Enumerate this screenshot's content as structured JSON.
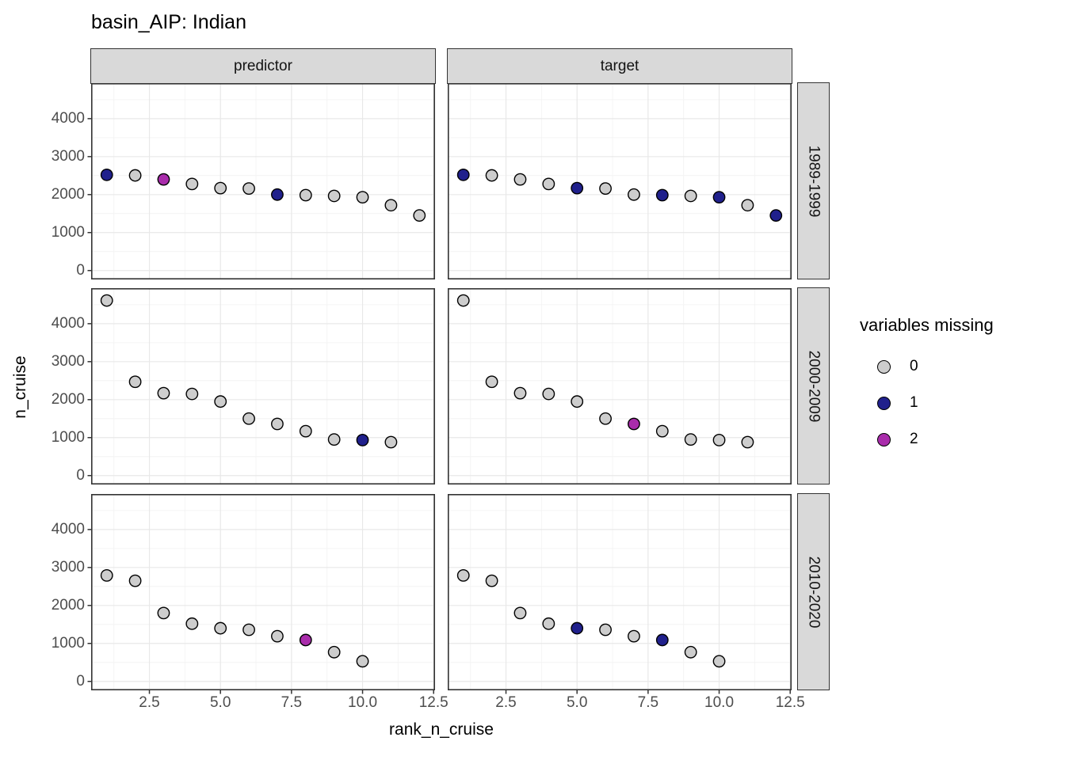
{
  "title": "basin_AIP: Indian",
  "colors": {
    "strip_fill": "#d9d9d9",
    "panel_border": "#333333",
    "grid_major": "#e8e8e8",
    "grid_minor": "#f4f4f4",
    "tick_text": "#4d4d4d",
    "point_stroke": "#000000"
  },
  "chart_data": {
    "type": "scatter",
    "title": "basin_AIP: Indian",
    "xlabel": "rank_n_cruise",
    "ylabel": "n_cruise",
    "facet_cols": [
      "predictor",
      "target"
    ],
    "facet_rows": [
      "1989-1999",
      "2000-2009",
      "2010-2020"
    ],
    "x_ticks": [
      2.5,
      5.0,
      7.5,
      10.0,
      12.5
    ],
    "x_tick_labels": [
      "2.5",
      "5.0",
      "7.5",
      "10.0",
      "12.5"
    ],
    "y_ticks": [
      0,
      1000,
      2000,
      3000,
      4000
    ],
    "y_tick_labels": [
      "0",
      "1000",
      "2000",
      "3000",
      "4000"
    ],
    "xlim": [
      0.45,
      12.55
    ],
    "ylim": [
      -235,
      4935
    ],
    "grid": {
      "major": true,
      "minor": true
    },
    "point_colors": {
      "0": "#cdcdcd",
      "1": "#20208c",
      "2": "#a92cab"
    },
    "legend": {
      "title": "variables missing",
      "position": "right",
      "items": [
        {
          "label": "0",
          "color": "#cdcdcd"
        },
        {
          "label": "1",
          "color": "#20208c"
        },
        {
          "label": "2",
          "color": "#a92cab"
        }
      ]
    },
    "panels": [
      {
        "facet_col": "predictor",
        "facet_row": "1989-1999",
        "points": [
          {
            "x": 1,
            "y": 2520,
            "missing": 1
          },
          {
            "x": 2,
            "y": 2505,
            "missing": 0
          },
          {
            "x": 3,
            "y": 2400,
            "missing": 2
          },
          {
            "x": 4,
            "y": 2280,
            "missing": 0
          },
          {
            "x": 5,
            "y": 2170,
            "missing": 0
          },
          {
            "x": 6,
            "y": 2160,
            "missing": 0
          },
          {
            "x": 7,
            "y": 2000,
            "missing": 1
          },
          {
            "x": 8,
            "y": 1985,
            "missing": 0
          },
          {
            "x": 9,
            "y": 1965,
            "missing": 0
          },
          {
            "x": 10,
            "y": 1930,
            "missing": 0
          },
          {
            "x": 11,
            "y": 1720,
            "missing": 0
          },
          {
            "x": 12,
            "y": 1450,
            "missing": 0
          }
        ]
      },
      {
        "facet_col": "target",
        "facet_row": "1989-1999",
        "points": [
          {
            "x": 1,
            "y": 2520,
            "missing": 1
          },
          {
            "x": 2,
            "y": 2505,
            "missing": 0
          },
          {
            "x": 3,
            "y": 2400,
            "missing": 0
          },
          {
            "x": 4,
            "y": 2280,
            "missing": 0
          },
          {
            "x": 5,
            "y": 2170,
            "missing": 1
          },
          {
            "x": 6,
            "y": 2160,
            "missing": 0
          },
          {
            "x": 7,
            "y": 2000,
            "missing": 0
          },
          {
            "x": 8,
            "y": 1985,
            "missing": 1
          },
          {
            "x": 9,
            "y": 1965,
            "missing": 0
          },
          {
            "x": 10,
            "y": 1930,
            "missing": 1
          },
          {
            "x": 11,
            "y": 1720,
            "missing": 0
          },
          {
            "x": 12,
            "y": 1450,
            "missing": 1
          }
        ]
      },
      {
        "facet_col": "predictor",
        "facet_row": "2000-2009",
        "points": [
          {
            "x": 1,
            "y": 4610,
            "missing": 0
          },
          {
            "x": 2,
            "y": 2470,
            "missing": 0
          },
          {
            "x": 3,
            "y": 2170,
            "missing": 0
          },
          {
            "x": 4,
            "y": 2150,
            "missing": 0
          },
          {
            "x": 5,
            "y": 1950,
            "missing": 0
          },
          {
            "x": 6,
            "y": 1500,
            "missing": 0
          },
          {
            "x": 7,
            "y": 1360,
            "missing": 0
          },
          {
            "x": 8,
            "y": 1170,
            "missing": 0
          },
          {
            "x": 9,
            "y": 950,
            "missing": 0
          },
          {
            "x": 10,
            "y": 935,
            "missing": 1
          },
          {
            "x": 11,
            "y": 880,
            "missing": 0
          }
        ]
      },
      {
        "facet_col": "target",
        "facet_row": "2000-2009",
        "points": [
          {
            "x": 1,
            "y": 4610,
            "missing": 0
          },
          {
            "x": 2,
            "y": 2470,
            "missing": 0
          },
          {
            "x": 3,
            "y": 2170,
            "missing": 0
          },
          {
            "x": 4,
            "y": 2150,
            "missing": 0
          },
          {
            "x": 5,
            "y": 1950,
            "missing": 0
          },
          {
            "x": 6,
            "y": 1500,
            "missing": 0
          },
          {
            "x": 7,
            "y": 1360,
            "missing": 2
          },
          {
            "x": 8,
            "y": 1170,
            "missing": 0
          },
          {
            "x": 9,
            "y": 950,
            "missing": 0
          },
          {
            "x": 10,
            "y": 935,
            "missing": 0
          },
          {
            "x": 11,
            "y": 880,
            "missing": 0
          }
        ]
      },
      {
        "facet_col": "predictor",
        "facet_row": "2010-2020",
        "points": [
          {
            "x": 1,
            "y": 2790,
            "missing": 0
          },
          {
            "x": 2,
            "y": 2650,
            "missing": 0
          },
          {
            "x": 3,
            "y": 1800,
            "missing": 0
          },
          {
            "x": 4,
            "y": 1520,
            "missing": 0
          },
          {
            "x": 5,
            "y": 1400,
            "missing": 0
          },
          {
            "x": 6,
            "y": 1360,
            "missing": 0
          },
          {
            "x": 7,
            "y": 1190,
            "missing": 0
          },
          {
            "x": 8,
            "y": 1090,
            "missing": 2
          },
          {
            "x": 9,
            "y": 770,
            "missing": 0
          },
          {
            "x": 10,
            "y": 530,
            "missing": 0
          }
        ]
      },
      {
        "facet_col": "target",
        "facet_row": "2010-2020",
        "points": [
          {
            "x": 1,
            "y": 2790,
            "missing": 0
          },
          {
            "x": 2,
            "y": 2650,
            "missing": 0
          },
          {
            "x": 3,
            "y": 1800,
            "missing": 0
          },
          {
            "x": 4,
            "y": 1520,
            "missing": 0
          },
          {
            "x": 5,
            "y": 1400,
            "missing": 1
          },
          {
            "x": 6,
            "y": 1360,
            "missing": 0
          },
          {
            "x": 7,
            "y": 1190,
            "missing": 0
          },
          {
            "x": 8,
            "y": 1090,
            "missing": 1
          },
          {
            "x": 9,
            "y": 770,
            "missing": 0
          },
          {
            "x": 10,
            "y": 530,
            "missing": 0
          }
        ]
      }
    ]
  }
}
